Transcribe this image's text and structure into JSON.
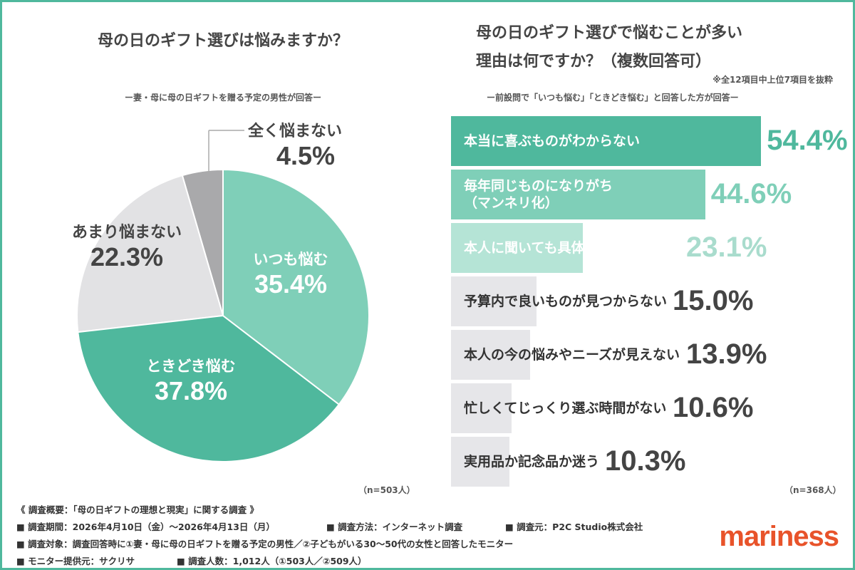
{
  "chart_data": [
    {
      "type": "pie",
      "title": "母の日のギフト選びは悩みますか？",
      "subtitle": "ー妻・母に母の日ギフトを贈る予定の男性が回答ー",
      "note": "（n=503人）",
      "unit": "%",
      "slices": [
        {
          "label": "いつも悩む",
          "value": 35.4,
          "display": "35.4%",
          "color": "#7fcfb8"
        },
        {
          "label": "ときどき悩む",
          "value": 37.8,
          "display": "37.8%",
          "color": "#4fb89d"
        },
        {
          "label": "あまり悩まない",
          "value": 22.3,
          "display": "22.3%",
          "color": "#e2e2e4"
        },
        {
          "label": "全く悩まない",
          "value": 4.5,
          "display": "4.5%",
          "color": "#a9a9ab"
        }
      ]
    },
    {
      "type": "bar",
      "orientation": "horizontal",
      "title_line1": "母の日のギフト選びで悩むことが多い",
      "title_line2": "理由は何ですか？（複数回答可）",
      "footnote": "※全12項目中上位7項目を抜粋",
      "subtitle": "ー前設問で「いつも悩む」「ときどき悩む」と回答した方が回答ー",
      "note": "（n=368人）",
      "unit": "%",
      "categories": [
        "本当に喜ぶものがわからない",
        "毎年同じものになりがち\n（マンネリ化）",
        "本人に聞いても具体的な希望がない",
        "予算内で良いものが見つからない",
        "本人の今の悩みやニーズが見えない",
        "忙しくてじっくり選ぶ時間がない",
        "実用品か記念品か迷う"
      ],
      "values": [
        54.4,
        44.6,
        23.1,
        15.0,
        13.9,
        10.6,
        10.3
      ],
      "displays": [
        "54.4%",
        "44.6%",
        "23.1%",
        "15.0%",
        "13.9%",
        "10.6%",
        "10.3%"
      ],
      "colors": [
        "#4fb89d",
        "#7fcfb8",
        "#b5e4d6",
        "#e6e6e9",
        "#e6e6e9",
        "#e6e6e9",
        "#e6e6e9"
      ],
      "value_colors": [
        "#4fb89d",
        "#7fcfb8",
        "#a9dccd",
        "#444444",
        "#444444",
        "#444444",
        "#444444"
      ]
    }
  ],
  "footer": {
    "l1": "《 調査概要：「母の日ギフトの理想と現実」に関する調査 》",
    "l2a": "■ 調査期間：2026年4月10日（金）〜2026年4月13日（月）",
    "l2b": "■ 調査方法：インターネット調査",
    "l2c": "■ 調査元：P2C Studio株式会社",
    "l3": "■ 調査対象：調査回答時に①妻・母に母の日ギフトを贈る予定の男性／②子どもがいる30〜50代の女性と回答したモニター",
    "l4a": "■ モニター提供元：サクリサ",
    "l4b": "■ 調査人数：1,012人（①503人／②509人）"
  },
  "logo": "mariness",
  "colors": {
    "border": "#4fb89d",
    "logo": "#e8532a"
  }
}
